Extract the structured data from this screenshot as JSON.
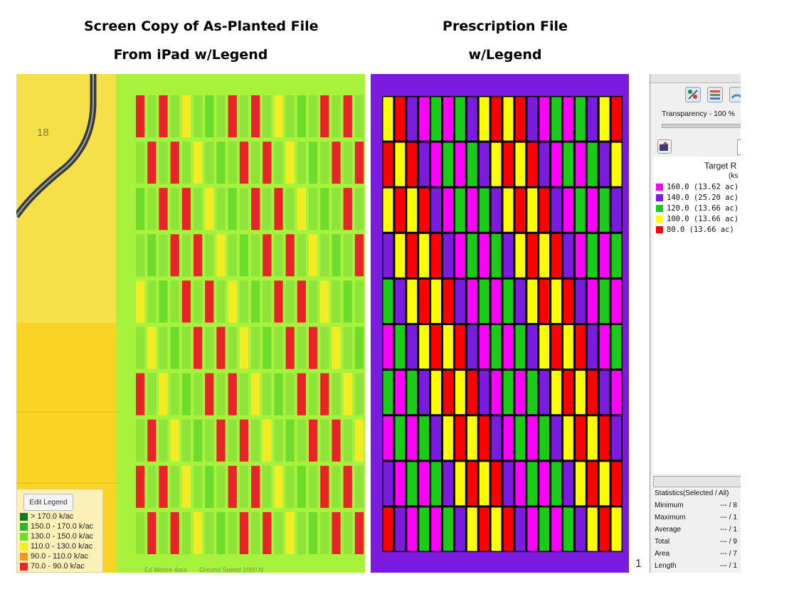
{
  "headings": {
    "left_line1": "Screen Copy of As-Planted File",
    "left_line2": "From iPad w/Legend",
    "mid_line1": "Prescription File",
    "mid_line2": "w/Legend"
  },
  "as_planted": {
    "field_number": "18",
    "edit_legend_label": "Edit Legend",
    "legend": [
      {
        "label": "> 170.0 k/ac",
        "color": "#0e7a1e"
      },
      {
        "label": "150.0 - 170.0 k/ac",
        "color": "#2fb52a"
      },
      {
        "label": "130.0 - 150.0 k/ac",
        "color": "#6fdc2d"
      },
      {
        "label": "110.0 - 130.0 k/ac",
        "color": "#f4ec22"
      },
      {
        "label": "90.0 - 110.0 k/ac",
        "color": "#f79622"
      },
      {
        "label": "70.0 - 90.0 k/ac",
        "color": "#e8242a"
      }
    ],
    "footer_text_1": "Ed Moore 4ara",
    "footer_text_2": "Ground Speed 1000 N"
  },
  "prescription": {
    "colors": {
      "160": "#ff00ff",
      "140": "#7c1be0",
      "120": "#18cc18",
      "100": "#ffff00",
      "80": "#ff0000"
    }
  },
  "gis_panel": {
    "transparency_label": "Transparency - 100 %",
    "target_rate_label": "Target R",
    "target_rate_unit": "(ks",
    "legend": [
      {
        "label": "160.0 (13.62 ac)",
        "color": "#ff00ff"
      },
      {
        "label": "140.0 (25.20 ac)",
        "color": "#7c1be0"
      },
      {
        "label": "120.0 (13.66 ac)",
        "color": "#18cc18"
      },
      {
        "label": "100.0 (13.66 ac)",
        "color": "#ffff00"
      },
      {
        "label": " 80.0 (13.66 ac)",
        "color": "#ff0000"
      }
    ],
    "stats_header": "Statistics(Selected / All)",
    "stats": [
      {
        "label": "Minimum",
        "value": "--- / 8"
      },
      {
        "label": "Maximum",
        "value": "--- / 1"
      },
      {
        "label": "Average",
        "value": "--- / 1"
      },
      {
        "label": "Total",
        "value": "--- / 9"
      },
      {
        "label": "Area",
        "value": "--- / 7"
      },
      {
        "label": "Length",
        "value": "--- / 1"
      }
    ],
    "page_mark": "1"
  }
}
